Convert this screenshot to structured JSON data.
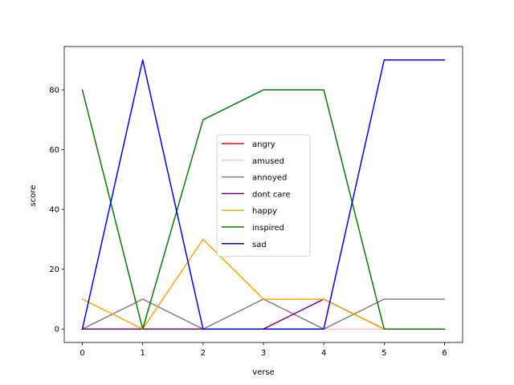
{
  "chart_data": {
    "type": "line",
    "title": "",
    "xlabel": "verse",
    "ylabel": "score",
    "x": [
      0,
      1,
      2,
      3,
      4,
      5,
      6
    ],
    "xlim": [
      -0.3,
      6.3
    ],
    "ylim": [
      -4.5,
      94.5
    ],
    "xticks": [
      0,
      1,
      2,
      3,
      4,
      5,
      6
    ],
    "yticks": [
      0,
      20,
      40,
      60,
      80
    ],
    "grid": false,
    "legend_position": "center",
    "series": [
      {
        "name": "angry",
        "color": "#ff0000",
        "values": [
          0,
          0,
          0,
          0,
          0,
          0,
          0
        ]
      },
      {
        "name": "amused",
        "color": "#ffc0cb",
        "values": [
          0,
          0,
          0,
          0,
          0,
          0,
          0
        ]
      },
      {
        "name": "annoyed",
        "color": "#808080",
        "values": [
          0,
          10,
          0,
          10,
          0,
          10,
          10
        ]
      },
      {
        "name": "dont care",
        "color": "#800080",
        "values": [
          0,
          0,
          0,
          0,
          10,
          0,
          0
        ]
      },
      {
        "name": "happy",
        "color": "#ffa500",
        "values": [
          10,
          0,
          30,
          10,
          10,
          0,
          0
        ]
      },
      {
        "name": "inspired",
        "color": "#008000",
        "values": [
          80,
          0,
          70,
          80,
          80,
          0,
          0
        ]
      },
      {
        "name": "sad",
        "color": "#0000ff",
        "values": [
          0,
          90,
          0,
          0,
          0,
          90,
          90
        ]
      }
    ]
  }
}
